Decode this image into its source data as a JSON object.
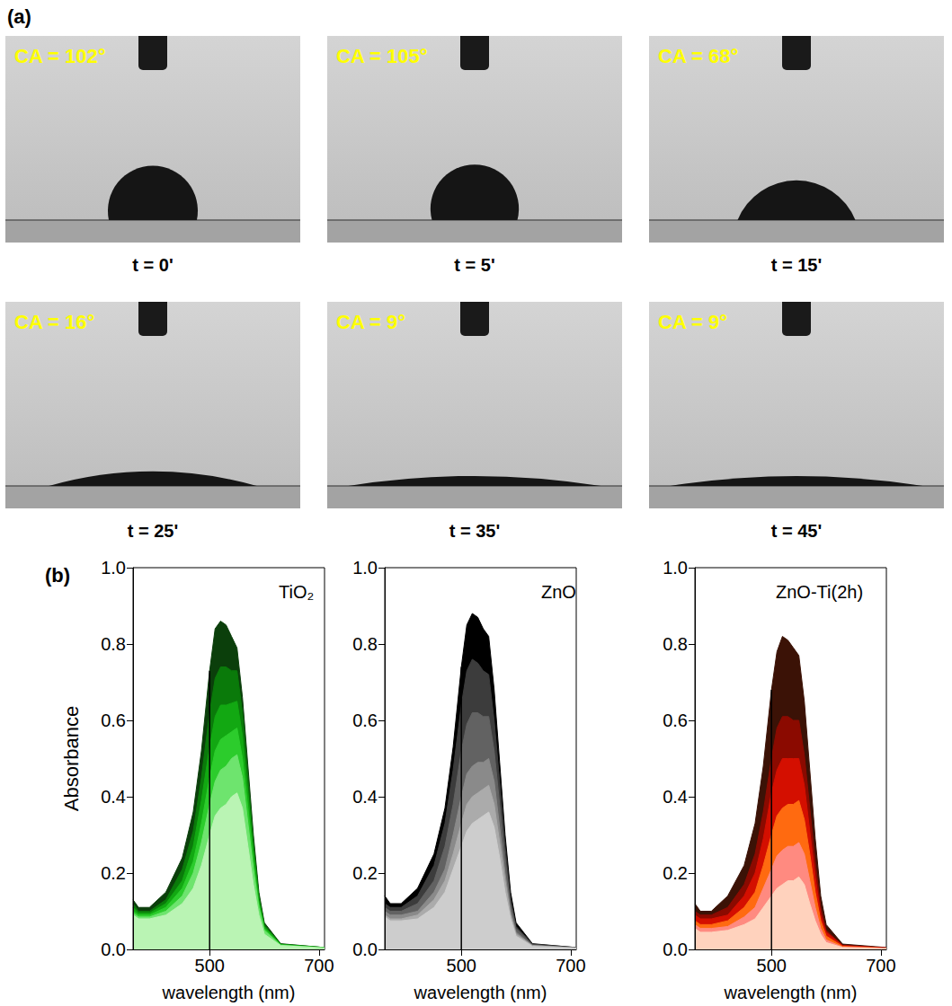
{
  "panel_a": {
    "label": "(a)",
    "frames": [
      {
        "contact_angle": {
          "value": 102,
          "label": "CA = 102°"
        },
        "time": "t = 0'"
      },
      {
        "contact_angle": {
          "value": 105,
          "label": "CA = 105°"
        },
        "time": "t = 5'"
      },
      {
        "contact_angle": {
          "value": 68,
          "label": "CA = 68°"
        },
        "time": "t = 15'"
      },
      {
        "contact_angle": {
          "value": 16,
          "label": "CA = 16°"
        },
        "time": "t = 25'"
      },
      {
        "contact_angle": {
          "value": 9,
          "label": "CA = 9°"
        },
        "time": "t = 35'"
      },
      {
        "contact_angle": {
          "value": 9,
          "label": "CA = 9°"
        },
        "time": "t = 45'"
      }
    ]
  },
  "panel_b": {
    "label": "(b)"
  },
  "chart_data": [
    {
      "type": "area",
      "title": "TiO₂",
      "xlabel": "wavelength (nm)",
      "ylabel": "Absorbance",
      "x": [
        360,
        370,
        390,
        420,
        450,
        470,
        485,
        500,
        510,
        520,
        530,
        540,
        550,
        560,
        570,
        580,
        590,
        600,
        630,
        710
      ],
      "series": [
        {
          "color": "#0b3f0b",
          "values": [
            0.13,
            0.11,
            0.11,
            0.15,
            0.24,
            0.36,
            0.52,
            0.73,
            0.84,
            0.86,
            0.85,
            0.82,
            0.79,
            0.66,
            0.48,
            0.3,
            0.15,
            0.07,
            0.015,
            0.005
          ]
        },
        {
          "color": "#0a7a0a",
          "values": [
            0.12,
            0.1,
            0.1,
            0.13,
            0.21,
            0.31,
            0.45,
            0.62,
            0.71,
            0.74,
            0.74,
            0.73,
            0.73,
            0.62,
            0.45,
            0.28,
            0.14,
            0.065,
            0.014,
            0.005
          ]
        },
        {
          "color": "#12a812",
          "values": [
            0.11,
            0.095,
            0.095,
            0.12,
            0.18,
            0.27,
            0.39,
            0.53,
            0.61,
            0.64,
            0.64,
            0.645,
            0.65,
            0.56,
            0.41,
            0.26,
            0.13,
            0.06,
            0.013,
            0.005
          ]
        },
        {
          "color": "#2ccc2c",
          "values": [
            0.1,
            0.09,
            0.09,
            0.11,
            0.16,
            0.23,
            0.33,
            0.45,
            0.52,
            0.55,
            0.56,
            0.57,
            0.58,
            0.5,
            0.37,
            0.23,
            0.12,
            0.055,
            0.012,
            0.004
          ]
        },
        {
          "color": "#6ee46e",
          "values": [
            0.095,
            0.085,
            0.085,
            0.1,
            0.14,
            0.2,
            0.28,
            0.38,
            0.44,
            0.47,
            0.48,
            0.5,
            0.51,
            0.45,
            0.33,
            0.21,
            0.11,
            0.05,
            0.011,
            0.004
          ]
        },
        {
          "color": "#baf4b4",
          "values": [
            0.09,
            0.08,
            0.08,
            0.09,
            0.12,
            0.16,
            0.22,
            0.3,
            0.35,
            0.37,
            0.38,
            0.4,
            0.41,
            0.37,
            0.27,
            0.17,
            0.09,
            0.04,
            0.01,
            0.004
          ]
        }
      ],
      "xlim": [
        360,
        710
      ],
      "ylim": [
        0,
        1.0
      ],
      "xticks": [
        500,
        700
      ],
      "yticks": [
        {
          "value": 0,
          "label": "0.0"
        },
        {
          "value": 0.2,
          "label": "0.2"
        },
        {
          "value": 0.4,
          "label": "0.4"
        },
        {
          "value": 0.6,
          "label": "0.6"
        },
        {
          "value": 0.8,
          "label": "0.8"
        },
        {
          "value": 1.0,
          "label": "1.0"
        }
      ],
      "grid": false,
      "vertical_line": {
        "x": 500,
        "y": [
          0,
          0.73
        ]
      }
    },
    {
      "type": "area",
      "title": "ZnO",
      "xlabel": "wavelength (nm)",
      "x": [
        360,
        370,
        390,
        420,
        450,
        470,
        485,
        500,
        510,
        520,
        530,
        540,
        550,
        560,
        570,
        580,
        590,
        600,
        630,
        710
      ],
      "series": [
        {
          "color": "#000000",
          "values": [
            0.14,
            0.12,
            0.12,
            0.16,
            0.25,
            0.37,
            0.53,
            0.74,
            0.85,
            0.88,
            0.87,
            0.84,
            0.82,
            0.68,
            0.49,
            0.3,
            0.15,
            0.07,
            0.015,
            0.005
          ]
        },
        {
          "color": "#3c3c3c",
          "values": [
            0.12,
            0.11,
            0.11,
            0.14,
            0.22,
            0.33,
            0.47,
            0.64,
            0.73,
            0.76,
            0.75,
            0.73,
            0.72,
            0.6,
            0.44,
            0.27,
            0.13,
            0.06,
            0.014,
            0.005
          ]
        },
        {
          "color": "#626262",
          "values": [
            0.11,
            0.1,
            0.1,
            0.12,
            0.18,
            0.27,
            0.38,
            0.52,
            0.59,
            0.62,
            0.62,
            0.61,
            0.61,
            0.52,
            0.38,
            0.24,
            0.12,
            0.055,
            0.012,
            0.004
          ]
        },
        {
          "color": "#8a8a8a",
          "values": [
            0.1,
            0.09,
            0.09,
            0.1,
            0.15,
            0.21,
            0.3,
            0.4,
            0.46,
            0.48,
            0.49,
            0.49,
            0.5,
            0.44,
            0.32,
            0.2,
            0.1,
            0.045,
            0.01,
            0.004
          ]
        },
        {
          "color": "#ababab",
          "values": [
            0.09,
            0.08,
            0.08,
            0.09,
            0.13,
            0.18,
            0.25,
            0.33,
            0.38,
            0.4,
            0.41,
            0.42,
            0.43,
            0.38,
            0.28,
            0.18,
            0.09,
            0.04,
            0.01,
            0.004
          ]
        },
        {
          "color": "#cdcdcd",
          "values": [
            0.085,
            0.075,
            0.075,
            0.08,
            0.11,
            0.15,
            0.21,
            0.27,
            0.31,
            0.33,
            0.34,
            0.35,
            0.36,
            0.32,
            0.24,
            0.15,
            0.08,
            0.035,
            0.008,
            0.003
          ]
        }
      ],
      "xlim": [
        360,
        710
      ],
      "ylim": [
        0,
        1.0
      ],
      "xticks": [
        500,
        700
      ],
      "yticks": [
        {
          "value": 0,
          "label": "0.0"
        },
        {
          "value": 0.2,
          "label": "0.2"
        },
        {
          "value": 0.4,
          "label": "0.4"
        },
        {
          "value": 0.6,
          "label": "0.6"
        },
        {
          "value": 0.8,
          "label": "0.8"
        },
        {
          "value": 1.0,
          "label": "1.0"
        }
      ],
      "grid": false,
      "vertical_line": {
        "x": 500,
        "y": [
          0,
          0.74
        ]
      }
    },
    {
      "type": "area",
      "title": "ZnO-Ti(2h)",
      "xlabel": "wavelength (nm)",
      "x": [
        360,
        370,
        390,
        420,
        450,
        470,
        485,
        500,
        510,
        520,
        530,
        540,
        550,
        560,
        570,
        580,
        590,
        600,
        630,
        710
      ],
      "series": [
        {
          "color": "#3b1206",
          "values": [
            0.12,
            0.1,
            0.1,
            0.14,
            0.22,
            0.33,
            0.48,
            0.68,
            0.78,
            0.82,
            0.81,
            0.79,
            0.77,
            0.65,
            0.47,
            0.29,
            0.14,
            0.065,
            0.014,
            0.005
          ]
        },
        {
          "color": "#8b0a00",
          "values": [
            0.1,
            0.09,
            0.09,
            0.11,
            0.17,
            0.25,
            0.36,
            0.5,
            0.58,
            0.61,
            0.61,
            0.6,
            0.6,
            0.51,
            0.37,
            0.23,
            0.11,
            0.05,
            0.011,
            0.004
          ]
        },
        {
          "color": "#d40f00",
          "values": [
            0.09,
            0.08,
            0.08,
            0.09,
            0.14,
            0.2,
            0.29,
            0.41,
            0.47,
            0.5,
            0.5,
            0.5,
            0.5,
            0.43,
            0.31,
            0.19,
            0.09,
            0.045,
            0.01,
            0.004
          ]
        },
        {
          "color": "#ff6a10",
          "values": [
            0.075,
            0.065,
            0.065,
            0.075,
            0.11,
            0.15,
            0.22,
            0.3,
            0.35,
            0.37,
            0.38,
            0.38,
            0.39,
            0.34,
            0.25,
            0.15,
            0.075,
            0.035,
            0.008,
            0.003
          ]
        },
        {
          "color": "#ff8a80",
          "values": [
            0.065,
            0.055,
            0.055,
            0.06,
            0.085,
            0.11,
            0.16,
            0.21,
            0.245,
            0.26,
            0.27,
            0.27,
            0.28,
            0.25,
            0.18,
            0.11,
            0.055,
            0.025,
            0.006,
            0.003
          ]
        },
        {
          "color": "#ffd2bd",
          "values": [
            0.055,
            0.045,
            0.045,
            0.05,
            0.065,
            0.08,
            0.11,
            0.14,
            0.16,
            0.17,
            0.18,
            0.18,
            0.19,
            0.17,
            0.12,
            0.075,
            0.04,
            0.018,
            0.005,
            0.002
          ]
        }
      ],
      "xlim": [
        360,
        710
      ],
      "ylim": [
        0,
        1.0
      ],
      "xticks": [
        500,
        700
      ],
      "yticks": [
        {
          "value": 0,
          "label": "0.0"
        },
        {
          "value": 0.2,
          "label": "0.2"
        },
        {
          "value": 0.4,
          "label": "0.4"
        },
        {
          "value": 0.6,
          "label": "0.6"
        },
        {
          "value": 0.8,
          "label": "0.8"
        },
        {
          "value": 1.0,
          "label": "1.0"
        }
      ],
      "grid": false,
      "vertical_line": {
        "x": 500,
        "y": [
          0,
          0.68
        ]
      }
    }
  ]
}
